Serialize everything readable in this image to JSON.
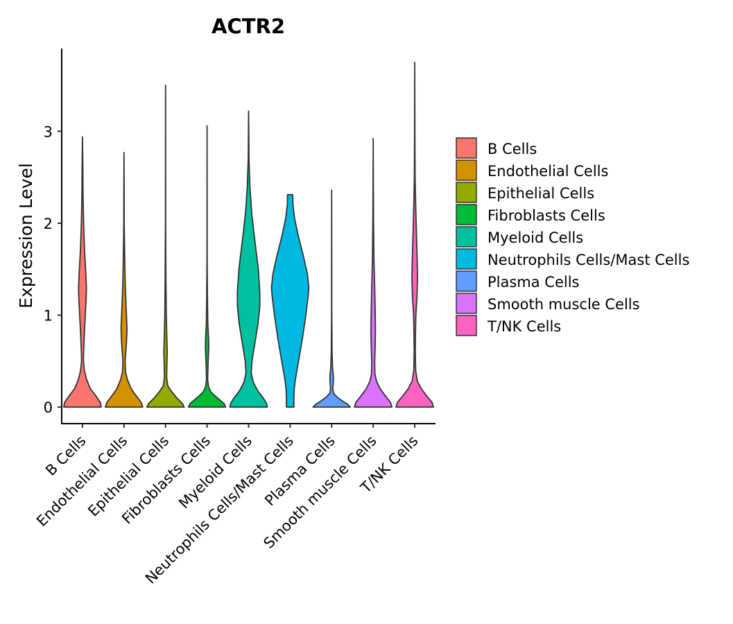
{
  "chart_data": {
    "type": "violin",
    "title": "ACTR2",
    "xlabel": "",
    "ylabel": "Expression Level",
    "ylim": [
      -0.18,
      3.9
    ],
    "yticks": [
      0,
      1,
      2,
      3
    ],
    "legend_position": "right",
    "categories": [
      "B Cells",
      "Endothelial Cells",
      "Epithelial Cells",
      "Fibroblasts Cells",
      "Myeloid Cells",
      "Neutrophils Cells/Mast Cells",
      "Plasma Cells",
      "Smooth muscle Cells",
      "T/NK Cells"
    ],
    "series": [
      {
        "name": "B Cells",
        "color": "#F8766D",
        "max": 2.94,
        "profile": [
          [
            0,
            1.0
          ],
          [
            0.05,
            0.96
          ],
          [
            0.12,
            0.72
          ],
          [
            0.2,
            0.42
          ],
          [
            0.3,
            0.22
          ],
          [
            0.4,
            0.1
          ],
          [
            0.5,
            0.05
          ],
          [
            0.6,
            0.06
          ],
          [
            0.8,
            0.1
          ],
          [
            1.0,
            0.15
          ],
          [
            1.2,
            0.2
          ],
          [
            1.3,
            0.21
          ],
          [
            1.45,
            0.18
          ],
          [
            1.7,
            0.11
          ],
          [
            2.0,
            0.06
          ],
          [
            2.3,
            0.03
          ],
          [
            2.6,
            0.02
          ],
          [
            2.94,
            0.0
          ]
        ]
      },
      {
        "name": "Endothelial Cells",
        "color": "#D39200",
        "max": 2.77,
        "profile": [
          [
            0,
            1.0
          ],
          [
            0.05,
            0.92
          ],
          [
            0.12,
            0.66
          ],
          [
            0.2,
            0.38
          ],
          [
            0.3,
            0.18
          ],
          [
            0.38,
            0.08
          ],
          [
            0.5,
            0.06
          ],
          [
            0.7,
            0.13
          ],
          [
            0.85,
            0.16
          ],
          [
            1.0,
            0.13
          ],
          [
            1.3,
            0.07
          ],
          [
            1.6,
            0.04
          ],
          [
            2.0,
            0.01
          ],
          [
            2.4,
            0.008
          ],
          [
            2.77,
            0.0
          ]
        ]
      },
      {
        "name": "Epithelial Cells",
        "color": "#93AA00",
        "max": 3.5,
        "profile": [
          [
            0,
            1.0
          ],
          [
            0.04,
            0.9
          ],
          [
            0.1,
            0.6
          ],
          [
            0.17,
            0.32
          ],
          [
            0.23,
            0.12
          ],
          [
            0.32,
            0.06
          ],
          [
            0.45,
            0.07
          ],
          [
            0.6,
            0.09
          ],
          [
            0.75,
            0.07
          ],
          [
            1.0,
            0.04
          ],
          [
            1.4,
            0.02
          ],
          [
            2.0,
            0.006
          ],
          [
            2.6,
            0.004
          ],
          [
            3.5,
            0.0
          ]
        ]
      },
      {
        "name": "Fibroblasts Cells",
        "color": "#00BA38",
        "max": 3.06,
        "profile": [
          [
            0,
            1.0
          ],
          [
            0.04,
            0.9
          ],
          [
            0.1,
            0.55
          ],
          [
            0.16,
            0.22
          ],
          [
            0.22,
            0.08
          ],
          [
            0.3,
            0.03
          ],
          [
            0.45,
            0.05
          ],
          [
            0.65,
            0.09
          ],
          [
            0.75,
            0.08
          ],
          [
            0.9,
            0.04
          ],
          [
            1.2,
            0.02
          ],
          [
            1.6,
            0.006
          ],
          [
            2.2,
            0.004
          ],
          [
            3.06,
            0.0
          ]
        ]
      },
      {
        "name": "Myeloid Cells",
        "color": "#00C19F",
        "max": 3.22,
        "profile": [
          [
            0,
            1.0
          ],
          [
            0.04,
            0.96
          ],
          [
            0.1,
            0.78
          ],
          [
            0.18,
            0.48
          ],
          [
            0.27,
            0.25
          ],
          [
            0.37,
            0.14
          ],
          [
            0.5,
            0.18
          ],
          [
            0.7,
            0.34
          ],
          [
            0.9,
            0.5
          ],
          [
            1.1,
            0.6
          ],
          [
            1.25,
            0.6
          ],
          [
            1.5,
            0.52
          ],
          [
            1.8,
            0.34
          ],
          [
            2.1,
            0.17
          ],
          [
            2.4,
            0.07
          ],
          [
            2.7,
            0.02
          ],
          [
            3.0,
            0.01
          ],
          [
            3.22,
            0.0
          ]
        ]
      },
      {
        "name": "Neutrophils Cells/Mast Cells",
        "color": "#00B9E3",
        "max": 2.31,
        "profile": [
          [
            0,
            0.2
          ],
          [
            0.1,
            0.2
          ],
          [
            0.2,
            0.22
          ],
          [
            0.3,
            0.28
          ],
          [
            0.5,
            0.45
          ],
          [
            0.75,
            0.66
          ],
          [
            1.0,
            0.84
          ],
          [
            1.2,
            0.96
          ],
          [
            1.3,
            1.0
          ],
          [
            1.45,
            0.92
          ],
          [
            1.65,
            0.7
          ],
          [
            1.85,
            0.45
          ],
          [
            2.05,
            0.24
          ],
          [
            2.2,
            0.15
          ],
          [
            2.31,
            0.14
          ]
        ]
      },
      {
        "name": "Plasma Cells",
        "color": "#619CFF",
        "max": 2.36,
        "profile": [
          [
            0,
            1.0
          ],
          [
            0.03,
            0.85
          ],
          [
            0.07,
            0.55
          ],
          [
            0.11,
            0.28
          ],
          [
            0.15,
            0.1
          ],
          [
            0.2,
            0.06
          ],
          [
            0.28,
            0.09
          ],
          [
            0.34,
            0.09
          ],
          [
            0.42,
            0.05
          ],
          [
            0.6,
            0.02
          ],
          [
            1.0,
            0.006
          ],
          [
            1.6,
            0.004
          ],
          [
            2.36,
            0.0
          ]
        ]
      },
      {
        "name": "Smooth muscle Cells",
        "color": "#DB72FB",
        "max": 2.92,
        "profile": [
          [
            0,
            1.0
          ],
          [
            0.05,
            0.93
          ],
          [
            0.12,
            0.66
          ],
          [
            0.2,
            0.37
          ],
          [
            0.28,
            0.18
          ],
          [
            0.36,
            0.09
          ],
          [
            0.5,
            0.08
          ],
          [
            0.7,
            0.11
          ],
          [
            0.85,
            0.12
          ],
          [
            1.0,
            0.11
          ],
          [
            1.3,
            0.08
          ],
          [
            1.6,
            0.04
          ],
          [
            2.0,
            0.02
          ],
          [
            2.4,
            0.008
          ],
          [
            2.92,
            0.0
          ]
        ]
      },
      {
        "name": "T/NK Cells",
        "color": "#FF61C3",
        "max": 3.75,
        "profile": [
          [
            0,
            1.0
          ],
          [
            0.05,
            0.93
          ],
          [
            0.12,
            0.64
          ],
          [
            0.2,
            0.35
          ],
          [
            0.28,
            0.14
          ],
          [
            0.4,
            0.05
          ],
          [
            0.6,
            0.03
          ],
          [
            0.8,
            0.04
          ],
          [
            1.0,
            0.06
          ],
          [
            1.2,
            0.12
          ],
          [
            1.4,
            0.15
          ],
          [
            1.6,
            0.13
          ],
          [
            1.9,
            0.09
          ],
          [
            2.2,
            0.05
          ],
          [
            2.5,
            0.02
          ],
          [
            3.0,
            0.008
          ],
          [
            3.75,
            0.0
          ]
        ]
      }
    ]
  }
}
